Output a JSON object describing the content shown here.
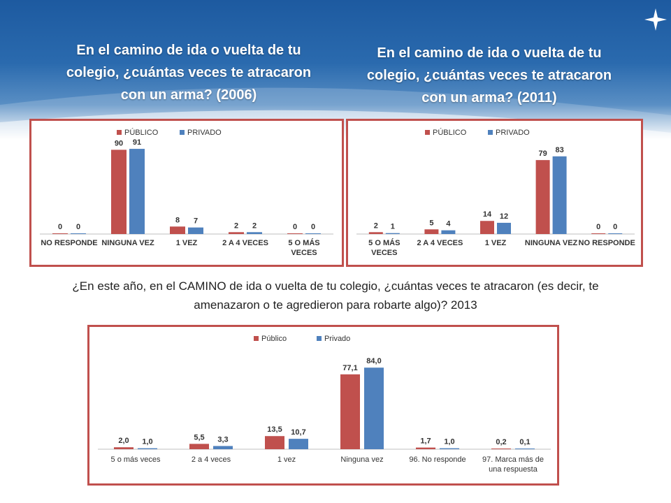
{
  "colors": {
    "publico": "#c0504d",
    "privado": "#4f81bd",
    "frame": "#c0504d"
  },
  "titles": {
    "left": "En el camino de ida o vuelta de tu colegio, ¿cuántas veces te atracaron con un arma? (2006)",
    "right": "En el camino de ida o vuelta de tu colegio, ¿cuántas veces te atracaron con un arma? (2011)"
  },
  "question": "¿En este año, en el CAMINO de ida o vuelta de tu colegio, ¿cuántas veces te atracaron (es decir, te amenazaron o te agredieron para robarte algo)? 2013",
  "chart_data": [
    {
      "type": "bar",
      "title": "En el camino de ida o vuelta de tu colegio, ¿cuántas veces te atracaron con un arma? (2006)",
      "categories": [
        "NO RESPONDE",
        "NINGUNA VEZ",
        "1 VEZ",
        "2 A 4 VECES",
        "5 O MÁS VECES"
      ],
      "series": [
        {
          "name": "PÚBLICO",
          "values": [
            0,
            90,
            8,
            2,
            0
          ],
          "labels": [
            "0",
            "90",
            "8",
            "2",
            "0"
          ]
        },
        {
          "name": "PRIVADO",
          "values": [
            0,
            91,
            7,
            2,
            0
          ],
          "labels": [
            "0",
            "91",
            "7",
            "2",
            "0"
          ]
        }
      ],
      "ylim": [
        0,
        100
      ],
      "grid": false,
      "legend": "top-center"
    },
    {
      "type": "bar",
      "title": "En el camino de ida o vuelta de tu colegio, ¿cuántas veces te atracaron con un arma? (2011)",
      "categories": [
        "5 O MÁS VECES",
        "2 A 4 VECES",
        "1 VEZ",
        "NINGUNA VEZ",
        "NO RESPONDE"
      ],
      "series": [
        {
          "name": "PÚBLICO",
          "values": [
            2,
            5,
            14,
            79,
            0
          ],
          "labels": [
            "2",
            "5",
            "14",
            "79",
            "0"
          ]
        },
        {
          "name": "PRIVADO",
          "values": [
            1,
            4,
            12,
            83,
            0
          ],
          "labels": [
            "1",
            "4",
            "12",
            "83",
            "0"
          ]
        }
      ],
      "ylim": [
        0,
        100
      ],
      "grid": false,
      "legend": "top-center"
    },
    {
      "type": "bar",
      "title": "¿En este año, en el CAMINO de ida o vuelta de tu colegio, ¿cuántas veces te atracaron (es decir, te amenazaron o te agredieron para robarte algo)? 2013",
      "categories": [
        "5 o más veces",
        "2 a 4 veces",
        "1 vez",
        "Ninguna vez",
        "96. No responde",
        "97. Marca más de una respuesta"
      ],
      "series": [
        {
          "name": "Público",
          "values": [
            2.0,
            5.5,
            13.5,
            77.1,
            1.7,
            0.2
          ],
          "labels": [
            "2,0",
            "5,5",
            "13,5",
            "77,1",
            "1,7",
            "0,2"
          ]
        },
        {
          "name": "Privado",
          "values": [
            1.0,
            3.3,
            10.7,
            84.0,
            1.0,
            0.1
          ],
          "labels": [
            "1,0",
            "3,3",
            "10,7",
            "84,0",
            "1,0",
            "0,1"
          ]
        }
      ],
      "ylim": [
        0,
        100
      ],
      "grid": false,
      "legend": "top-center"
    }
  ]
}
